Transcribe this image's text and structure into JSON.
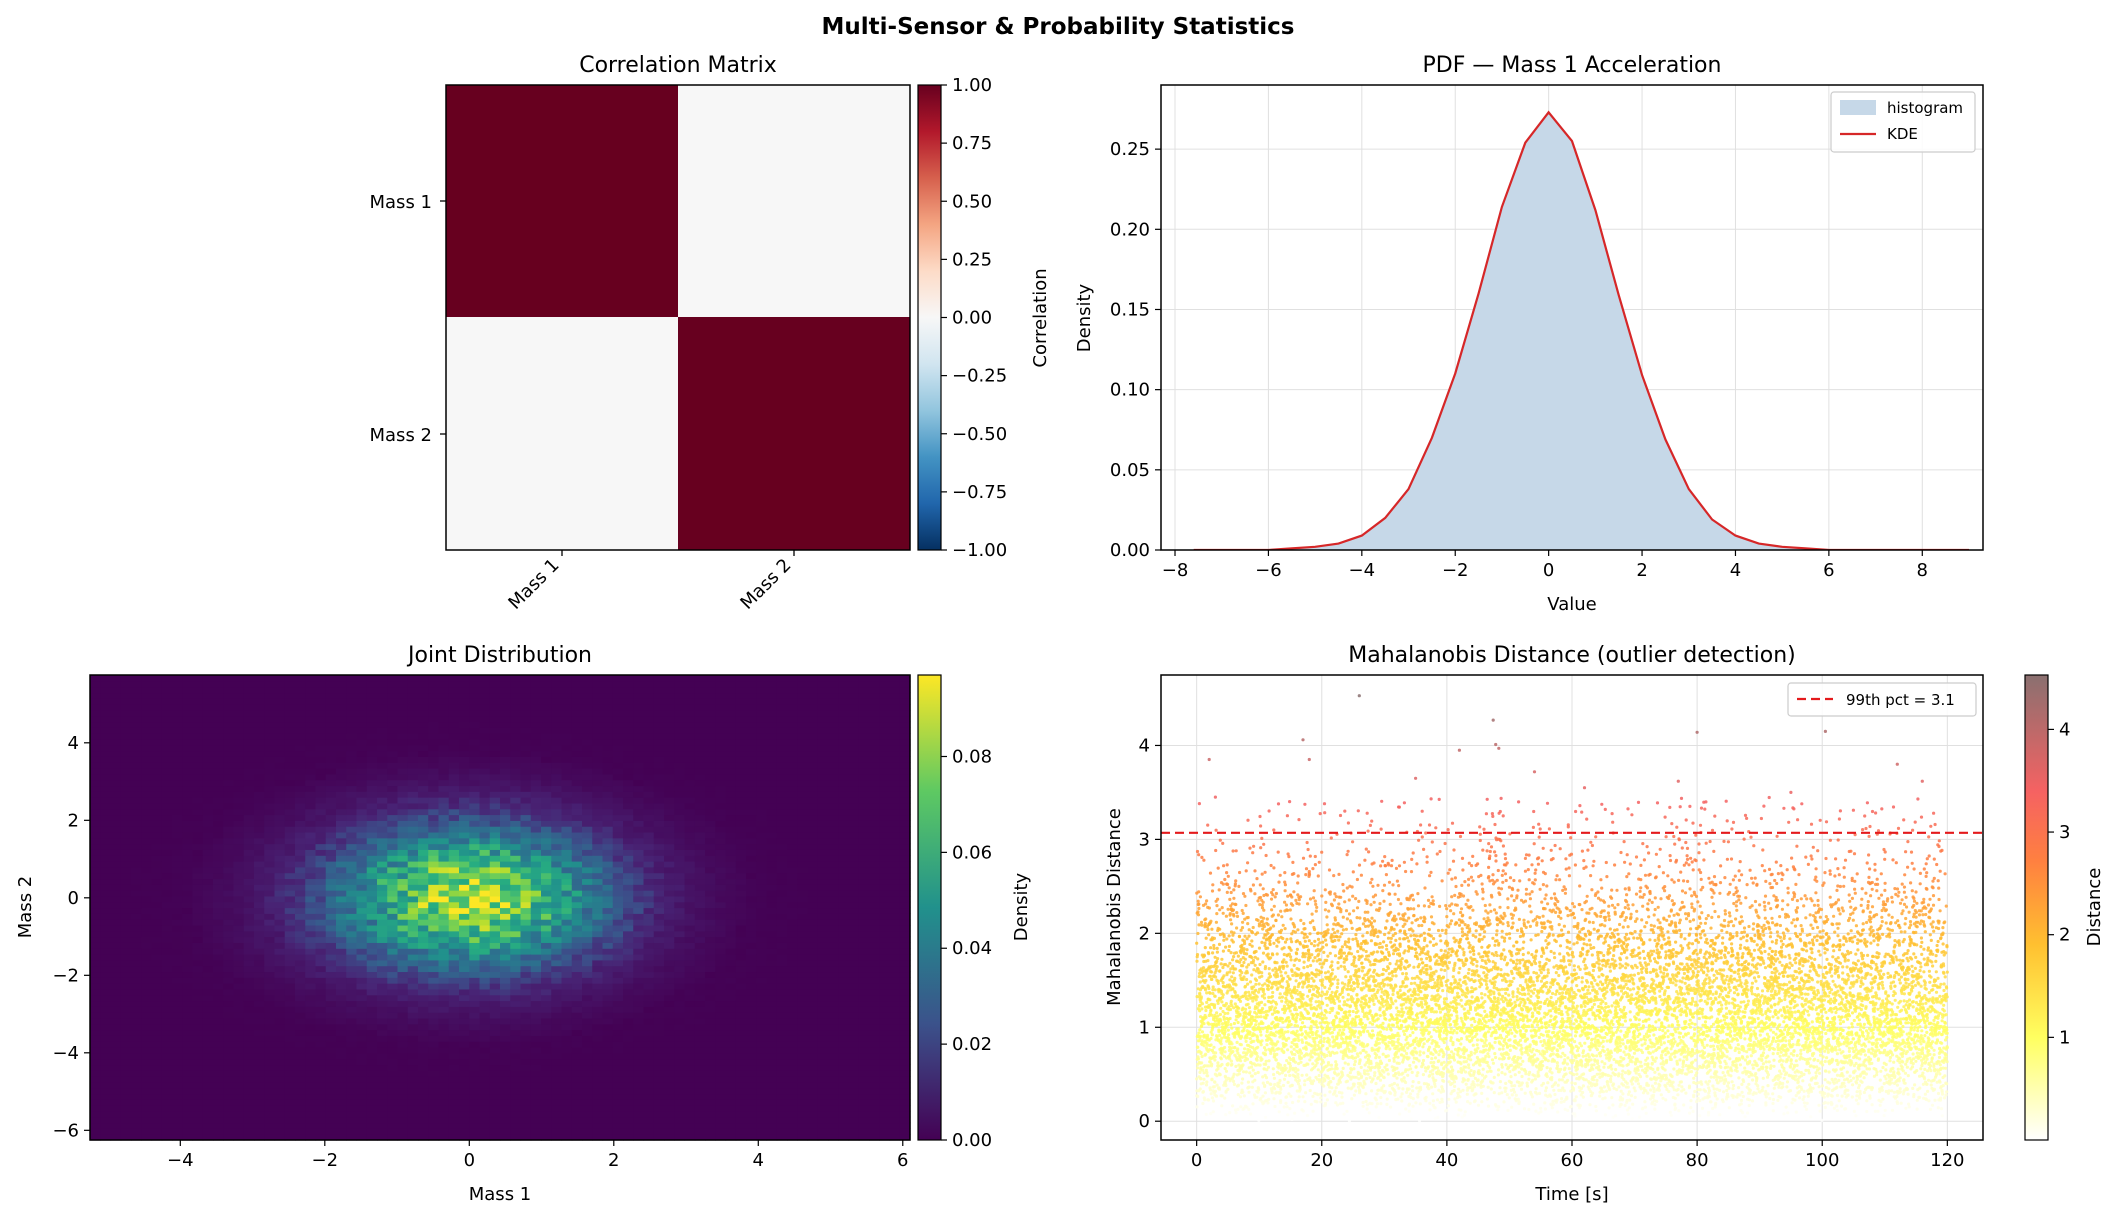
{
  "figure": {
    "title": "Multi-Sensor & Probability Statistics"
  },
  "chart_data": [
    {
      "type": "heatmap",
      "title": "Correlation Matrix",
      "row_labels": [
        "Mass 1",
        "Mass 2"
      ],
      "col_labels": [
        "Mass 1",
        "Mass 2"
      ],
      "matrix": [
        [
          1.0,
          0.0
        ],
        [
          0.0,
          1.0
        ]
      ],
      "colormap": "RdBu_r",
      "colorbar": {
        "label": "Correlation",
        "range": [
          -1.0,
          1.0
        ],
        "ticks": [
          "1.00",
          "0.75",
          "0.50",
          "0.25",
          "0.00",
          "−0.25",
          "−0.50",
          "−0.75",
          "−1.00"
        ]
      }
    },
    {
      "type": "area",
      "title": "PDF — Mass 1 Acceleration",
      "xlabel": "Value",
      "ylabel": "Density",
      "xlim": [
        -8.3,
        9.3
      ],
      "ylim": [
        0,
        0.29
      ],
      "grid": true,
      "legend": "top-right",
      "x_ticks": [
        "−8",
        "−6",
        "−4",
        "−2",
        "0",
        "2",
        "4",
        "6",
        "8"
      ],
      "y_ticks": [
        "0.00",
        "0.05",
        "0.10",
        "0.15",
        "0.20",
        "0.25"
      ],
      "series": [
        {
          "name": "histogram",
          "style": "filled",
          "color": "#c6d8e8",
          "x": [
            -7.6,
            -7,
            -6.5,
            -6,
            -5.5,
            -5,
            -4.5,
            -4,
            -3.5,
            -3,
            -2.5,
            -2,
            -1.5,
            -1,
            -0.5,
            0,
            0.5,
            1,
            1.5,
            2,
            2.5,
            3,
            3.5,
            4,
            4.5,
            5,
            5.5,
            6,
            6.5,
            7,
            8,
            9
          ],
          "values": [
            0.0,
            0.0,
            0.0,
            0.0,
            0.001,
            0.002,
            0.004,
            0.009,
            0.02,
            0.038,
            0.07,
            0.11,
            0.16,
            0.214,
            0.254,
            0.273,
            0.255,
            0.212,
            0.159,
            0.109,
            0.069,
            0.038,
            0.019,
            0.009,
            0.004,
            0.002,
            0.001,
            0.0,
            0.0,
            0.0,
            0.0,
            0.0
          ]
        },
        {
          "name": "KDE",
          "style": "line",
          "color": "#d62728",
          "x": [
            -7.6,
            -7,
            -6.5,
            -6,
            -5.5,
            -5,
            -4.5,
            -4,
            -3.5,
            -3,
            -2.5,
            -2,
            -1.5,
            -1,
            -0.5,
            0,
            0.5,
            1,
            1.5,
            2,
            2.5,
            3,
            3.5,
            4,
            4.5,
            5,
            5.5,
            6,
            6.5,
            7,
            8,
            9
          ],
          "values": [
            0.0,
            0.0,
            0.0,
            0.0,
            0.001,
            0.002,
            0.004,
            0.009,
            0.02,
            0.038,
            0.07,
            0.11,
            0.16,
            0.214,
            0.254,
            0.273,
            0.255,
            0.212,
            0.159,
            0.109,
            0.069,
            0.038,
            0.019,
            0.009,
            0.004,
            0.002,
            0.001,
            0.0,
            0.0,
            0.0,
            0.0,
            0.0
          ]
        }
      ]
    },
    {
      "type": "heatmap",
      "title": "Joint Distribution",
      "xlabel": "Mass 1",
      "ylabel": "Mass 2",
      "xlim": [
        -5.25,
        6.1
      ],
      "ylim": [
        -6.25,
        5.75
      ],
      "x_ticks": [
        "−4",
        "−2",
        "0",
        "2",
        "4",
        "6"
      ],
      "y_ticks": [
        "−6",
        "−4",
        "−2",
        "0",
        "2",
        "4"
      ],
      "distribution": {
        "mean_x": 0,
        "mean_y": 0,
        "sd_x": 1.35,
        "sd_y": 1.3,
        "peak_density": 0.097,
        "bins_x": 80,
        "bins_y": 80
      },
      "colormap": "viridis",
      "colorbar": {
        "label": "Density",
        "range": [
          0,
          0.097
        ],
        "ticks": [
          "0.00",
          "0.02",
          "0.04",
          "0.06",
          "0.08"
        ]
      }
    },
    {
      "type": "scatter",
      "title": "Mahalanobis Distance (outlier detection)",
      "xlabel": "Time [s]",
      "ylabel": "Mahalanobis Distance",
      "xlim": [
        -5.7,
        125.7
      ],
      "ylim": [
        -0.2,
        4.75
      ],
      "grid": true,
      "x_ticks": [
        "0",
        "20",
        "40",
        "60",
        "80",
        "100",
        "120"
      ],
      "y_ticks": [
        "0",
        "1",
        "2",
        "3",
        "4"
      ],
      "threshold": {
        "value": 3.07,
        "label": "99th pct = 3.1",
        "color": "#e41a1c",
        "style": "dashed"
      },
      "legend": "top-right",
      "points": {
        "count": 12000,
        "t_range": [
          0,
          120
        ],
        "distribution": "chi with 2 degrees of freedom"
      },
      "outliers": [
        [
          2,
          3.85
        ],
        [
          3,
          3.45
        ],
        [
          17,
          4.06
        ],
        [
          18,
          3.85
        ],
        [
          26,
          4.53
        ],
        [
          35,
          3.65
        ],
        [
          42,
          3.95
        ],
        [
          47.4,
          4.27
        ],
        [
          47.8,
          4.01
        ],
        [
          48.3,
          3.97
        ],
        [
          49,
          3.25
        ],
        [
          54,
          3.72
        ],
        [
          62,
          3.55
        ],
        [
          77,
          3.62
        ],
        [
          80,
          4.14
        ],
        [
          95,
          3.5
        ],
        [
          100.5,
          4.15
        ],
        [
          112,
          3.8
        ],
        [
          116,
          3.62
        ]
      ],
      "colormap": "hot_r",
      "colorbar": {
        "label": "Distance",
        "range": [
          0,
          4.53
        ],
        "ticks": [
          "1",
          "2",
          "3",
          "4"
        ]
      }
    }
  ]
}
